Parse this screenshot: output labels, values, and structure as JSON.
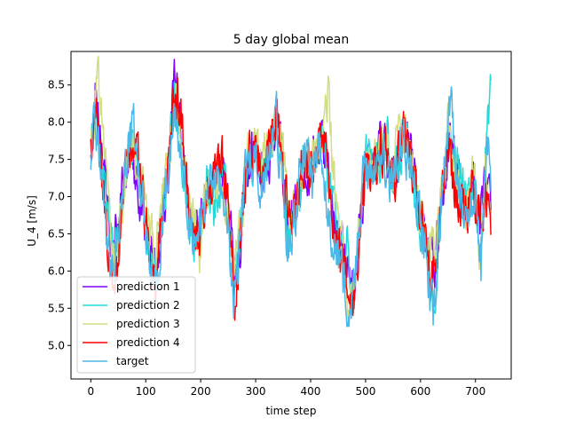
{
  "chart_data": {
    "type": "line",
    "title": "5 day global mean",
    "xlabel": "time step",
    "ylabel": "U_4 [m/s]",
    "xlim": [
      -36,
      765
    ],
    "ylim": [
      4.55,
      8.95
    ],
    "xticks": [
      0,
      100,
      200,
      300,
      400,
      500,
      600,
      700
    ],
    "yticks": [
      5.0,
      5.5,
      6.0,
      6.5,
      7.0,
      7.5,
      8.0,
      8.5
    ],
    "xtick_labels": [
      "0",
      "100",
      "200",
      "300",
      "400",
      "500",
      "600",
      "700"
    ],
    "ytick_labels": [
      "5.0",
      "5.5",
      "6.0",
      "6.5",
      "7.0",
      "7.5",
      "8.0",
      "8.5"
    ],
    "legend_position": "lower-left",
    "x_points": 729,
    "series": [
      {
        "name": "prediction 1",
        "color": "#7f00ff",
        "anchors": [
          [
            0,
            7.4
          ],
          [
            8,
            8.3
          ],
          [
            18,
            7.8
          ],
          [
            30,
            6.8
          ],
          [
            40,
            6.2
          ],
          [
            50,
            6.6
          ],
          [
            62,
            7.4
          ],
          [
            75,
            7.6
          ],
          [
            90,
            7.0
          ],
          [
            105,
            6.4
          ],
          [
            118,
            6.0
          ],
          [
            130,
            6.6
          ],
          [
            142,
            7.4
          ],
          [
            152,
            8.6
          ],
          [
            162,
            8.0
          ],
          [
            172,
            7.2
          ],
          [
            185,
            6.5
          ],
          [
            198,
            6.6
          ],
          [
            212,
            7.0
          ],
          [
            226,
            7.1
          ],
          [
            240,
            7.3
          ],
          [
            252,
            6.8
          ],
          [
            262,
            6.0
          ],
          [
            272,
            6.4
          ],
          [
            285,
            7.3
          ],
          [
            300,
            7.8
          ],
          [
            312,
            7.4
          ],
          [
            322,
            7.3
          ],
          [
            338,
            8.1
          ],
          [
            350,
            7.4
          ],
          [
            360,
            6.5
          ],
          [
            372,
            6.9
          ],
          [
            385,
            7.2
          ],
          [
            398,
            7.3
          ],
          [
            412,
            7.6
          ],
          [
            422,
            7.9
          ],
          [
            432,
            7.3
          ],
          [
            444,
            6.6
          ],
          [
            455,
            6.5
          ],
          [
            466,
            6.1
          ],
          [
            478,
            5.6
          ],
          [
            490,
            6.6
          ],
          [
            502,
            7.5
          ],
          [
            514,
            7.3
          ],
          [
            526,
            7.7
          ],
          [
            538,
            7.6
          ],
          [
            550,
            7.1
          ],
          [
            560,
            7.6
          ],
          [
            570,
            7.9
          ],
          [
            582,
            7.6
          ],
          [
            594,
            7.0
          ],
          [
            606,
            6.6
          ],
          [
            618,
            6.0
          ],
          [
            628,
            6.2
          ],
          [
            640,
            7.0
          ],
          [
            650,
            7.8
          ],
          [
            660,
            7.6
          ],
          [
            672,
            7.2
          ],
          [
            684,
            6.8
          ],
          [
            696,
            7.3
          ],
          [
            708,
            6.7
          ],
          [
            718,
            7.2
          ],
          [
            728,
            7.0
          ]
        ]
      },
      {
        "name": "prediction 2",
        "color": "#23d9d9",
        "anchors": [
          [
            0,
            7.6
          ],
          [
            8,
            8.1
          ],
          [
            18,
            7.6
          ],
          [
            30,
            6.9
          ],
          [
            40,
            6.4
          ],
          [
            50,
            6.3
          ],
          [
            62,
            7.3
          ],
          [
            75,
            7.8
          ],
          [
            90,
            7.1
          ],
          [
            105,
            6.3
          ],
          [
            118,
            6.0
          ],
          [
            130,
            6.8
          ],
          [
            142,
            7.6
          ],
          [
            152,
            8.3
          ],
          [
            162,
            7.7
          ],
          [
            172,
            7.1
          ],
          [
            185,
            6.4
          ],
          [
            198,
            6.8
          ],
          [
            212,
            7.2
          ],
          [
            226,
            6.9
          ],
          [
            240,
            7.4
          ],
          [
            252,
            6.7
          ],
          [
            262,
            5.8
          ],
          [
            272,
            6.6
          ],
          [
            285,
            7.5
          ],
          [
            300,
            7.6
          ],
          [
            312,
            7.2
          ],
          [
            322,
            7.5
          ],
          [
            338,
            8.0
          ],
          [
            350,
            7.2
          ],
          [
            360,
            6.3
          ],
          [
            372,
            6.7
          ],
          [
            385,
            7.4
          ],
          [
            398,
            7.5
          ],
          [
            412,
            7.4
          ],
          [
            422,
            7.8
          ],
          [
            432,
            7.1
          ],
          [
            444,
            6.8
          ],
          [
            455,
            6.4
          ],
          [
            466,
            6.3
          ],
          [
            478,
            5.4
          ],
          [
            490,
            6.5
          ],
          [
            502,
            7.6
          ],
          [
            514,
            7.5
          ],
          [
            526,
            7.5
          ],
          [
            538,
            7.8
          ],
          [
            550,
            7.3
          ],
          [
            560,
            7.4
          ],
          [
            570,
            8.0
          ],
          [
            582,
            7.4
          ],
          [
            594,
            6.8
          ],
          [
            606,
            6.4
          ],
          [
            618,
            5.8
          ],
          [
            628,
            5.3
          ],
          [
            640,
            7.2
          ],
          [
            650,
            7.7
          ],
          [
            660,
            7.4
          ],
          [
            672,
            7.3
          ],
          [
            684,
            6.9
          ],
          [
            696,
            7.1
          ],
          [
            708,
            5.9
          ],
          [
            718,
            7.5
          ],
          [
            728,
            8.5
          ]
        ]
      },
      {
        "name": "prediction 3",
        "color": "#d4dd80",
        "anchors": [
          [
            0,
            7.5
          ],
          [
            8,
            8.2
          ],
          [
            14,
            8.65
          ],
          [
            24,
            7.7
          ],
          [
            34,
            6.6
          ],
          [
            44,
            6.2
          ],
          [
            55,
            6.8
          ],
          [
            66,
            7.5
          ],
          [
            78,
            7.7
          ],
          [
            92,
            7.2
          ],
          [
            106,
            6.5
          ],
          [
            118,
            6.2
          ],
          [
            130,
            6.9
          ],
          [
            142,
            7.5
          ],
          [
            150,
            8.4
          ],
          [
            160,
            8.2
          ],
          [
            172,
            7.3
          ],
          [
            185,
            6.7
          ],
          [
            198,
            6.3
          ],
          [
            212,
            7.2
          ],
          [
            226,
            7.3
          ],
          [
            240,
            7.0
          ],
          [
            252,
            6.5
          ],
          [
            262,
            6.1
          ],
          [
            272,
            6.5
          ],
          [
            285,
            7.6
          ],
          [
            300,
            7.9
          ],
          [
            312,
            7.5
          ],
          [
            322,
            7.7
          ],
          [
            338,
            8.0
          ],
          [
            350,
            7.6
          ],
          [
            360,
            6.9
          ],
          [
            372,
            6.8
          ],
          [
            385,
            7.3
          ],
          [
            398,
            7.4
          ],
          [
            412,
            7.6
          ],
          [
            422,
            7.7
          ],
          [
            432,
            8.4
          ],
          [
            444,
            7.0
          ],
          [
            455,
            6.6
          ],
          [
            466,
            5.5
          ],
          [
            478,
            5.7
          ],
          [
            490,
            6.7
          ],
          [
            502,
            7.5
          ],
          [
            514,
            7.4
          ],
          [
            526,
            7.6
          ],
          [
            538,
            7.7
          ],
          [
            550,
            7.3
          ],
          [
            560,
            7.8
          ],
          [
            570,
            7.9
          ],
          [
            582,
            7.5
          ],
          [
            594,
            7.0
          ],
          [
            606,
            6.6
          ],
          [
            618,
            6.1
          ],
          [
            628,
            6.4
          ],
          [
            640,
            7.1
          ],
          [
            650,
            8.0
          ],
          [
            660,
            7.3
          ],
          [
            672,
            7.0
          ],
          [
            684,
            6.8
          ],
          [
            696,
            7.4
          ],
          [
            708,
            6.0
          ],
          [
            718,
            7.3
          ],
          [
            728,
            6.7
          ]
        ]
      },
      {
        "name": "prediction 4",
        "color": "#ff0000",
        "anchors": [
          [
            0,
            7.5
          ],
          [
            8,
            8.2
          ],
          [
            18,
            7.6
          ],
          [
            28,
            6.6
          ],
          [
            36,
            5.9
          ],
          [
            44,
            5.6
          ],
          [
            55,
            6.7
          ],
          [
            66,
            7.6
          ],
          [
            78,
            7.8
          ],
          [
            92,
            7.2
          ],
          [
            106,
            6.3
          ],
          [
            118,
            5.9
          ],
          [
            130,
            6.7
          ],
          [
            142,
            7.5
          ],
          [
            152,
            8.2
          ],
          [
            160,
            8.3
          ],
          [
            172,
            7.4
          ],
          [
            185,
            6.6
          ],
          [
            198,
            6.5
          ],
          [
            212,
            7.1
          ],
          [
            226,
            7.3
          ],
          [
            240,
            7.5
          ],
          [
            252,
            6.8
          ],
          [
            262,
            5.5
          ],
          [
            272,
            6.4
          ],
          [
            285,
            7.6
          ],
          [
            300,
            7.7
          ],
          [
            312,
            7.3
          ],
          [
            322,
            7.5
          ],
          [
            338,
            8.2
          ],
          [
            350,
            7.3
          ],
          [
            360,
            6.6
          ],
          [
            372,
            6.9
          ],
          [
            385,
            7.4
          ],
          [
            398,
            7.4
          ],
          [
            412,
            7.5
          ],
          [
            422,
            8.0
          ],
          [
            432,
            7.2
          ],
          [
            444,
            6.6
          ],
          [
            455,
            6.2
          ],
          [
            466,
            5.9
          ],
          [
            478,
            5.5
          ],
          [
            490,
            6.6
          ],
          [
            502,
            7.4
          ],
          [
            514,
            7.2
          ],
          [
            526,
            7.6
          ],
          [
            538,
            7.6
          ],
          [
            550,
            7.2
          ],
          [
            560,
            7.5
          ],
          [
            570,
            7.9
          ],
          [
            582,
            7.5
          ],
          [
            594,
            7.1
          ],
          [
            606,
            6.7
          ],
          [
            618,
            5.9
          ],
          [
            628,
            6.0
          ],
          [
            640,
            7.2
          ],
          [
            650,
            7.7
          ],
          [
            660,
            7.2
          ],
          [
            672,
            6.9
          ],
          [
            684,
            6.8
          ],
          [
            696,
            7.2
          ],
          [
            708,
            6.6
          ],
          [
            718,
            7.0
          ],
          [
            728,
            6.6
          ]
        ]
      },
      {
        "name": "target",
        "color": "#4cb8e8",
        "anchors": [
          [
            0,
            7.6
          ],
          [
            8,
            8.1
          ],
          [
            18,
            7.4
          ],
          [
            28,
            6.4
          ],
          [
            36,
            6.1
          ],
          [
            44,
            6.2
          ],
          [
            55,
            6.8
          ],
          [
            66,
            7.6
          ],
          [
            78,
            7.9
          ],
          [
            92,
            7.1
          ],
          [
            106,
            6.2
          ],
          [
            116,
            5.8
          ],
          [
            124,
            6.1
          ],
          [
            134,
            7.0
          ],
          [
            144,
            7.7
          ],
          [
            154,
            8.1
          ],
          [
            164,
            7.6
          ],
          [
            174,
            7.0
          ],
          [
            186,
            6.4
          ],
          [
            198,
            6.5
          ],
          [
            212,
            7.1
          ],
          [
            226,
            7.2
          ],
          [
            240,
            7.2
          ],
          [
            252,
            6.4
          ],
          [
            260,
            5.4
          ],
          [
            270,
            6.3
          ],
          [
            284,
            7.5
          ],
          [
            300,
            7.6
          ],
          [
            312,
            7.0
          ],
          [
            322,
            7.6
          ],
          [
            338,
            8.0
          ],
          [
            350,
            7.0
          ],
          [
            358,
            6.2
          ],
          [
            368,
            6.5
          ],
          [
            380,
            7.3
          ],
          [
            392,
            7.4
          ],
          [
            404,
            7.2
          ],
          [
            414,
            7.8
          ],
          [
            424,
            7.3
          ],
          [
            436,
            6.6
          ],
          [
            448,
            6.3
          ],
          [
            460,
            5.9
          ],
          [
            472,
            5.3
          ],
          [
            484,
            6.2
          ],
          [
            496,
            7.3
          ],
          [
            508,
            7.4
          ],
          [
            520,
            7.4
          ],
          [
            532,
            7.7
          ],
          [
            544,
            7.1
          ],
          [
            556,
            7.5
          ],
          [
            568,
            7.8
          ],
          [
            580,
            7.4
          ],
          [
            592,
            6.9
          ],
          [
            604,
            6.5
          ],
          [
            614,
            5.9
          ],
          [
            624,
            5.3
          ],
          [
            636,
            6.8
          ],
          [
            648,
            7.8
          ],
          [
            656,
            8.5
          ],
          [
            664,
            7.3
          ],
          [
            676,
            6.9
          ],
          [
            688,
            6.8
          ],
          [
            700,
            7.2
          ],
          [
            710,
            6.0
          ],
          [
            718,
            7.4
          ],
          [
            724,
            7.9
          ],
          [
            728,
            6.9
          ]
        ]
      }
    ]
  }
}
